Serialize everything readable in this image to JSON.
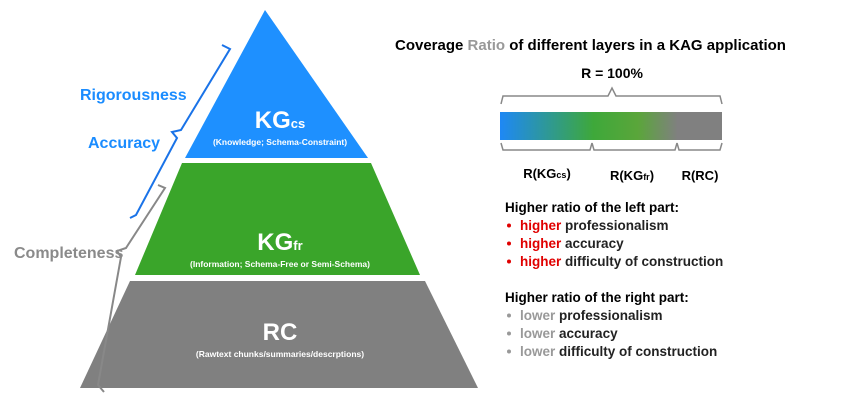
{
  "pyramid": {
    "layers": [
      {
        "label": "KG",
        "subscript": "cs",
        "description": "(Knowledge; Schema-Constraint)"
      },
      {
        "label": "KG",
        "subscript": "fr",
        "description": "(Information; Schema-Free or Semi-Schema)"
      },
      {
        "label": "RC",
        "description": "(Rawtext chunks/summaries/descrptions)"
      }
    ]
  },
  "brackets": {
    "rigorousness": "Rigorousness",
    "accuracy": "Accuracy",
    "completeness": "Completeness"
  },
  "coverage": {
    "title_start": "Coverage",
    "title_highlight": "Ratio",
    "title_end": "of different layers in a KAG application",
    "total": "R = 100%",
    "segments": [
      {
        "prefix": "R(KG",
        "subscript": "cs",
        "suffix": ")"
      },
      {
        "prefix": "R(KG",
        "subscript": "fr",
        "suffix": ")"
      },
      {
        "prefix": "R(RC)"
      }
    ]
  },
  "left_part": {
    "heading": "Higher ratio of the left part:",
    "items": [
      {
        "emphasis": "higher",
        "text": "professionalism"
      },
      {
        "emphasis": "higher",
        "text": "accuracy"
      },
      {
        "emphasis": "higher",
        "text": "difficulty of construction"
      }
    ]
  },
  "right_part": {
    "heading": "Higher ratio of the right part:",
    "items": [
      {
        "emphasis": "lower",
        "text": "professionalism"
      },
      {
        "emphasis": "lower",
        "text": "accuracy"
      },
      {
        "emphasis": "lower",
        "text": "difficulty of construction"
      }
    ]
  }
}
